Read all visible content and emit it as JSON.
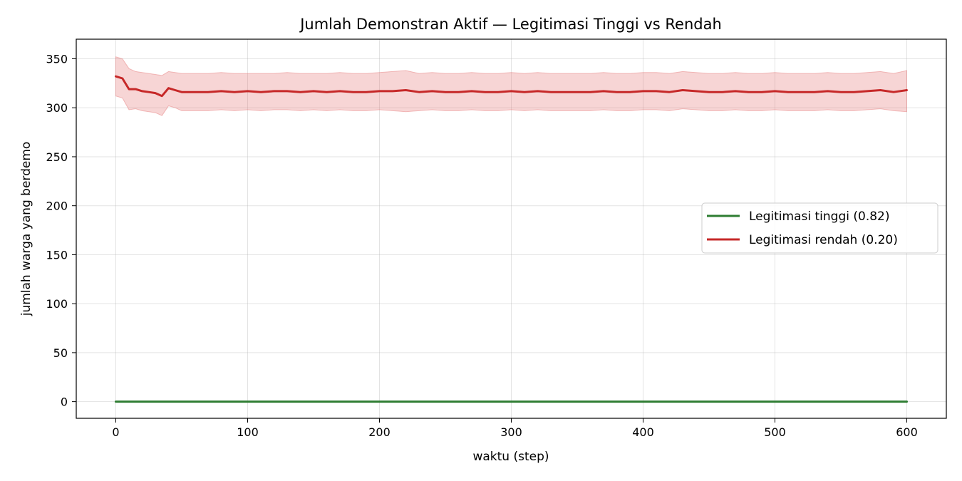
{
  "chart_data": {
    "type": "line",
    "title": "Jumlah Demonstran Aktif — Legitimasi Tinggi vs Rendah",
    "xlabel": "waktu (step)",
    "ylabel": "jumlah warga yang berdemo",
    "xlim": [
      -30,
      630
    ],
    "ylim": [
      -17,
      370
    ],
    "xticks": [
      0,
      100,
      200,
      300,
      400,
      500,
      600
    ],
    "yticks": [
      0,
      50,
      100,
      150,
      200,
      250,
      300,
      350
    ],
    "grid": true,
    "legend_position": "center-right",
    "series": [
      {
        "name": "Legitimasi tinggi (0.82)",
        "color": "#2e7d32",
        "x": [
          0,
          600
        ],
        "y": [
          0,
          0
        ]
      },
      {
        "name": "Legitimasi rendah (0.20)",
        "color": "#c62828",
        "band_color": "#e57373",
        "x": [
          0,
          5,
          10,
          15,
          20,
          25,
          30,
          35,
          40,
          45,
          50,
          60,
          70,
          80,
          90,
          100,
          110,
          120,
          130,
          140,
          150,
          160,
          170,
          180,
          190,
          200,
          210,
          220,
          230,
          240,
          250,
          260,
          270,
          280,
          290,
          300,
          310,
          320,
          330,
          340,
          350,
          360,
          370,
          380,
          390,
          400,
          410,
          420,
          430,
          440,
          450,
          460,
          470,
          480,
          490,
          500,
          510,
          520,
          530,
          540,
          550,
          560,
          570,
          580,
          590,
          600
        ],
        "y": [
          332,
          330,
          319,
          319,
          317,
          316,
          315,
          312,
          320,
          318,
          316,
          316,
          316,
          317,
          316,
          317,
          316,
          317,
          317,
          316,
          317,
          316,
          317,
          316,
          316,
          317,
          317,
          318,
          316,
          317,
          316,
          316,
          317,
          316,
          316,
          317,
          316,
          317,
          316,
          316,
          316,
          316,
          317,
          316,
          316,
          317,
          317,
          316,
          318,
          317,
          316,
          316,
          317,
          316,
          316,
          317,
          316,
          316,
          316,
          317,
          316,
          316,
          317,
          318,
          316,
          318
        ],
        "y_upper": [
          352,
          350,
          340,
          337,
          336,
          335,
          334,
          333,
          337,
          336,
          335,
          335,
          335,
          336,
          335,
          335,
          335,
          335,
          336,
          335,
          335,
          335,
          336,
          335,
          335,
          336,
          337,
          338,
          335,
          336,
          335,
          335,
          336,
          335,
          335,
          336,
          335,
          336,
          335,
          335,
          335,
          335,
          336,
          335,
          335,
          336,
          336,
          335,
          337,
          336,
          335,
          335,
          336,
          335,
          335,
          336,
          335,
          335,
          335,
          336,
          335,
          335,
          336,
          337,
          335,
          338
        ],
        "y_lower": [
          312,
          310,
          298,
          299,
          297,
          296,
          295,
          292,
          302,
          300,
          297,
          297,
          297,
          298,
          297,
          298,
          297,
          298,
          298,
          297,
          298,
          297,
          298,
          297,
          297,
          298,
          297,
          296,
          297,
          298,
          297,
          297,
          298,
          297,
          297,
          298,
          297,
          298,
          297,
          297,
          297,
          297,
          298,
          297,
          297,
          298,
          298,
          297,
          299,
          298,
          297,
          297,
          298,
          297,
          297,
          298,
          297,
          297,
          297,
          298,
          297,
          297,
          298,
          299,
          297,
          296
        ]
      }
    ]
  }
}
